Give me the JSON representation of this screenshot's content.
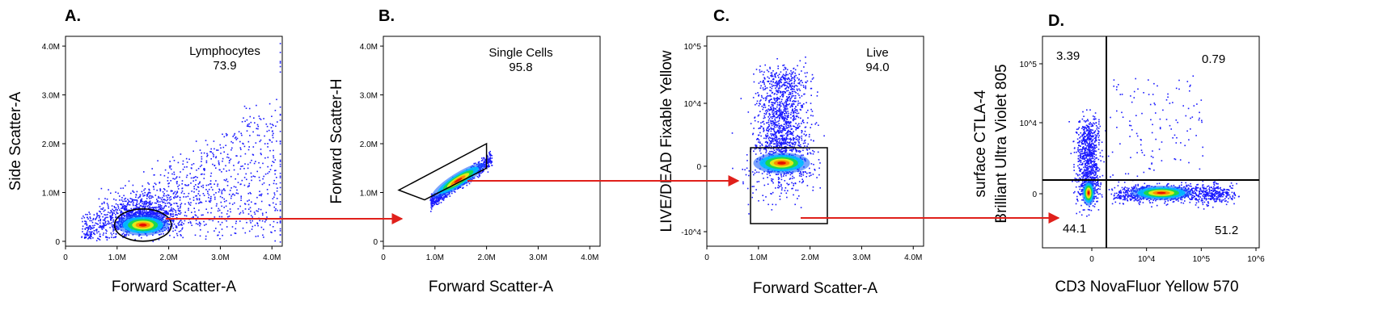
{
  "chart_data": [
    {
      "type": "scatter",
      "panel": "A.",
      "xlabel": "Forward Scatter-A",
      "ylabel": "Side Scatter-A",
      "x_ticks": [
        "0",
        "1.0M",
        "2.0M",
        "3.0M",
        "4.0M"
      ],
      "y_ticks": [
        "0",
        "1.0M",
        "2.0M",
        "3.0M",
        "4.0M"
      ],
      "xlim": [
        0,
        4200000
      ],
      "ylim": [
        -100000,
        4200000
      ],
      "gate": {
        "name": "Lymphocytes",
        "value": "73.9",
        "shape": "ellipse",
        "center": [
          1500000,
          300000
        ],
        "radius": [
          550000,
          330000
        ]
      },
      "population_center": [
        1500000,
        300000
      ]
    },
    {
      "type": "scatter",
      "panel": "B.",
      "xlabel": "Forward Scatter-A",
      "ylabel": "Forward Scatter-H",
      "x_ticks": [
        "0",
        "1.0M",
        "2.0M",
        "3.0M",
        "4.0M"
      ],
      "y_ticks": [
        "0",
        "1.0M",
        "2.0M",
        "3.0M",
        "4.0M"
      ],
      "xlim": [
        0,
        4200000
      ],
      "ylim": [
        -100000,
        4200000
      ],
      "gate": {
        "name": "Single Cells",
        "value": "95.8",
        "shape": "polygon",
        "vertices": [
          [
            300000,
            1050000
          ],
          [
            2000000,
            2000000
          ],
          [
            2000000,
            1500000
          ],
          [
            800000,
            850000
          ]
        ]
      },
      "population_center": [
        1450000,
        1250000
      ]
    },
    {
      "type": "scatter",
      "panel": "C.",
      "xlabel": "Forward Scatter-A",
      "ylabel": "LIVE/DEAD Fixable Yellow",
      "x_ticks": [
        "0",
        "1.0M",
        "2.0M",
        "3.0M",
        "4.0M"
      ],
      "y_ticks": [
        "10^5",
        "10^4",
        "0",
        "-10^4"
      ],
      "xlim": [
        0,
        4200000
      ],
      "gate": {
        "name": "Live",
        "value": "94.0",
        "shape": "rectangle"
      },
      "population_center": [
        1450000,
        0
      ]
    },
    {
      "type": "scatter",
      "panel": "D.",
      "xlabel": "CD3 NovaFluor Yellow 570",
      "ylabel_lines": [
        "surface CTLA-4",
        "Brilliant Ultra Violet 805"
      ],
      "x_ticks": [
        "0",
        "10^4",
        "10^5",
        "10^6"
      ],
      "y_ticks": [
        "10^5",
        "10^4",
        "0"
      ],
      "quadrants": {
        "upper_left": "3.39",
        "upper_right": "0.79",
        "lower_left": "44.1",
        "lower_right": "51.2"
      }
    }
  ],
  "colors": {
    "gate_arrow": "#e0201b",
    "dot_sparse": "#1a1aff",
    "gate_line": "#000000"
  }
}
